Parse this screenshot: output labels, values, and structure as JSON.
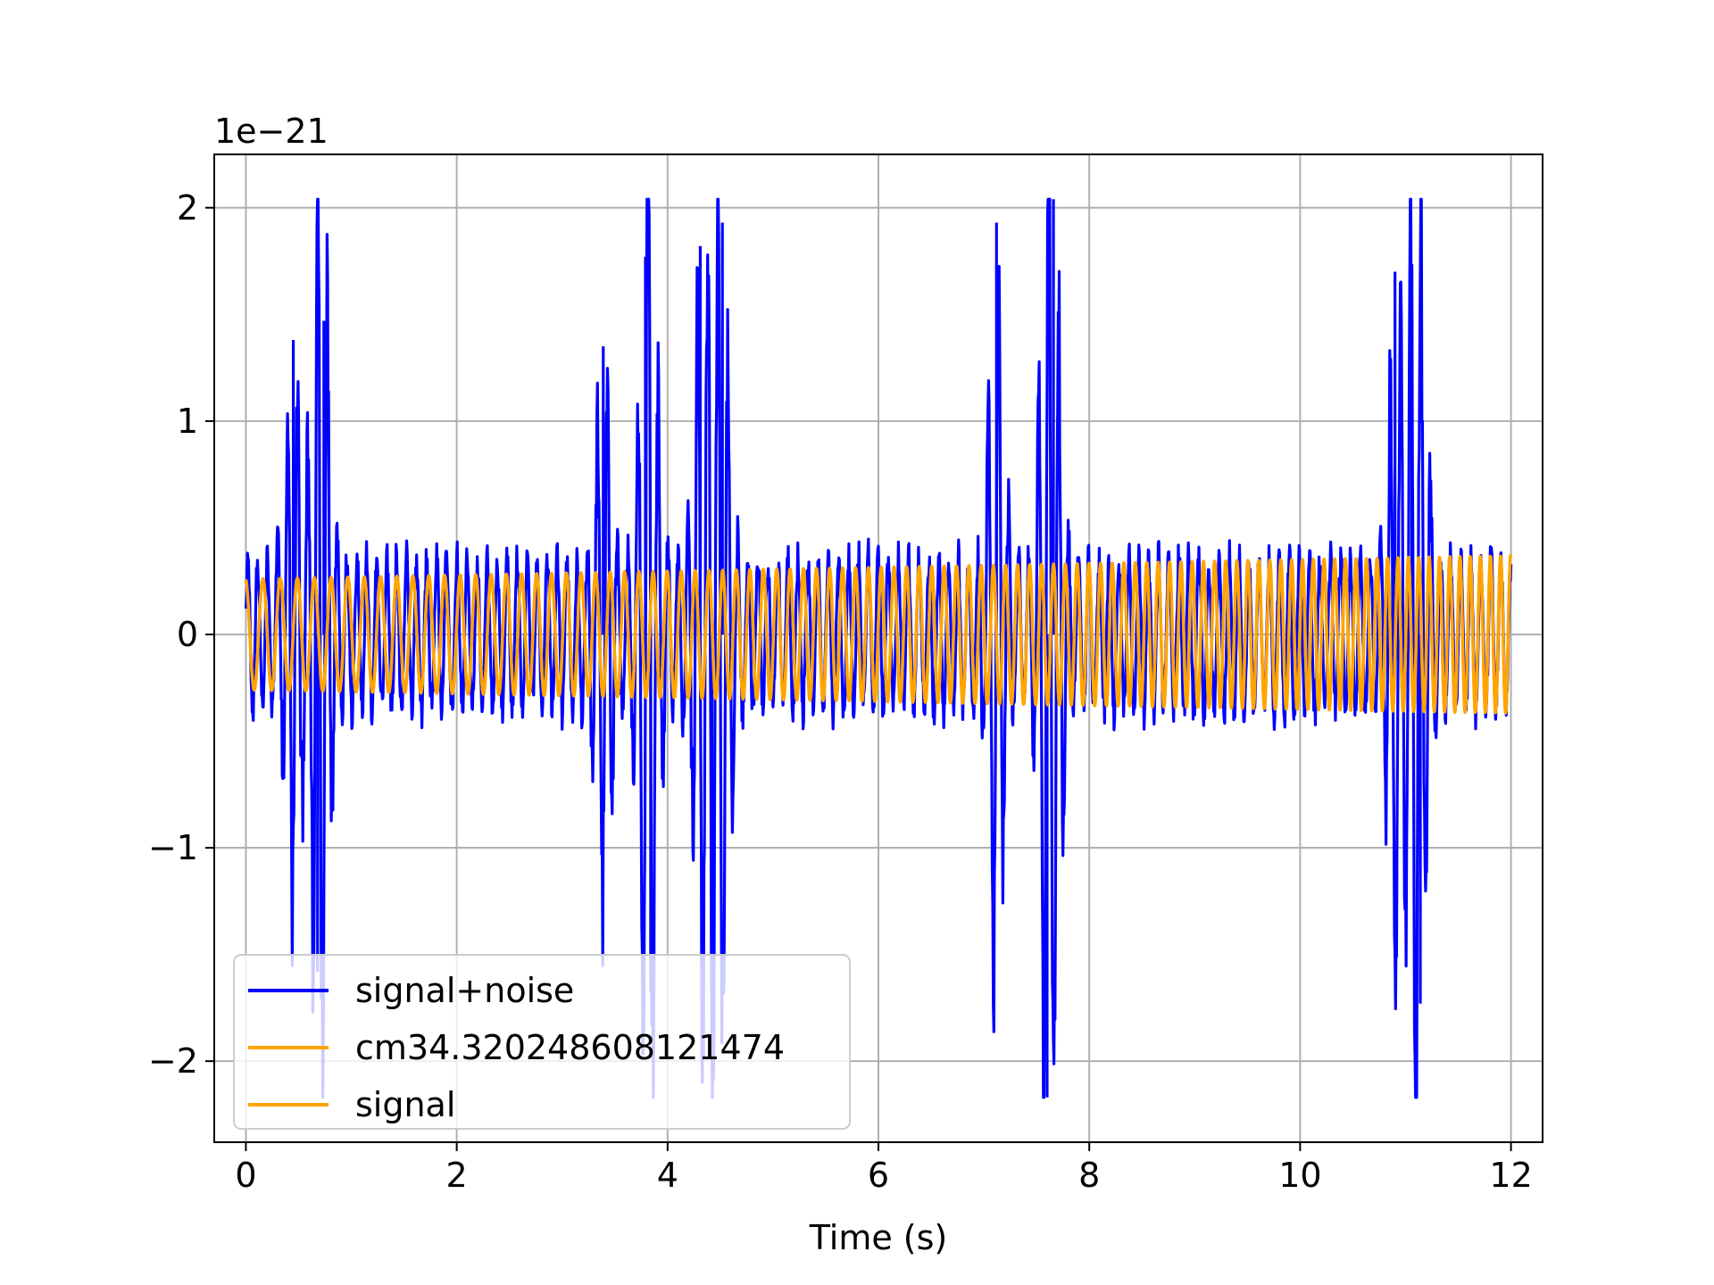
{
  "chart_data": {
    "type": "line",
    "xlabel": "Time (s)",
    "ylabel": "",
    "y_offset_label": "1e−21",
    "xlim": [
      -0.3,
      12.3
    ],
    "ylim": [
      -2.38e-21,
      2.25e-21
    ],
    "x_ticks": [
      0,
      2,
      4,
      6,
      8,
      10,
      12
    ],
    "x_tick_labels": [
      "0",
      "2",
      "4",
      "6",
      "8",
      "10",
      "12"
    ],
    "y_ticks": [
      -2e-21,
      -1e-21,
      0,
      1e-21,
      2e-21
    ],
    "y_tick_labels": [
      "−2",
      "−1",
      "0",
      "1",
      "2"
    ],
    "grid": true,
    "legend_position": "lower-left",
    "series": [
      {
        "name": "signal+noise",
        "color": "#0000ff",
        "x_range": [
          0,
          12
        ],
        "y_extent": [
          -2.17e-21,
          2.04e-21
        ],
        "peaks": [
          {
            "x": 0.45,
            "y": 1.38e-21
          },
          {
            "x": 0.74,
            "y": 1.47e-21
          },
          {
            "x": 0.68,
            "y": -1.58e-21
          },
          {
            "x": 3.39,
            "y": 1.35e-21
          },
          {
            "x": 3.79,
            "y": 1.77e-21
          },
          {
            "x": 3.84,
            "y": -1.68e-21
          },
          {
            "x": 4.31,
            "y": 1.82e-21
          },
          {
            "x": 4.52,
            "y": 1.93e-21
          },
          {
            "x": 4.42,
            "y": -1.47e-21
          },
          {
            "x": 7.12,
            "y": 1.93e-21
          },
          {
            "x": 7.66,
            "y": 2.04e-21
          },
          {
            "x": 7.6,
            "y": -2.17e-21
          },
          {
            "x": 10.9,
            "y": 1.7e-21
          },
          {
            "x": 11.06,
            "y": 1.5e-21
          },
          {
            "x": 11.14,
            "y": -1.73e-21
          }
        ]
      },
      {
        "name": "cm34.320248608121474",
        "color": "#ffa500",
        "x_range": [
          0,
          12
        ],
        "amplitude_start": 2.6e-22,
        "amplitude_end": 3.7e-22,
        "frequency_start_hz": 6.0,
        "frequency_end_hz": 10.5
      },
      {
        "name": "signal",
        "color": "#ffa500",
        "x_range": [
          0,
          12
        ],
        "amplitude_start": 2.6e-22,
        "amplitude_end": 3.7e-22,
        "frequency_start_hz": 6.0,
        "frequency_end_hz": 10.5
      }
    ]
  }
}
